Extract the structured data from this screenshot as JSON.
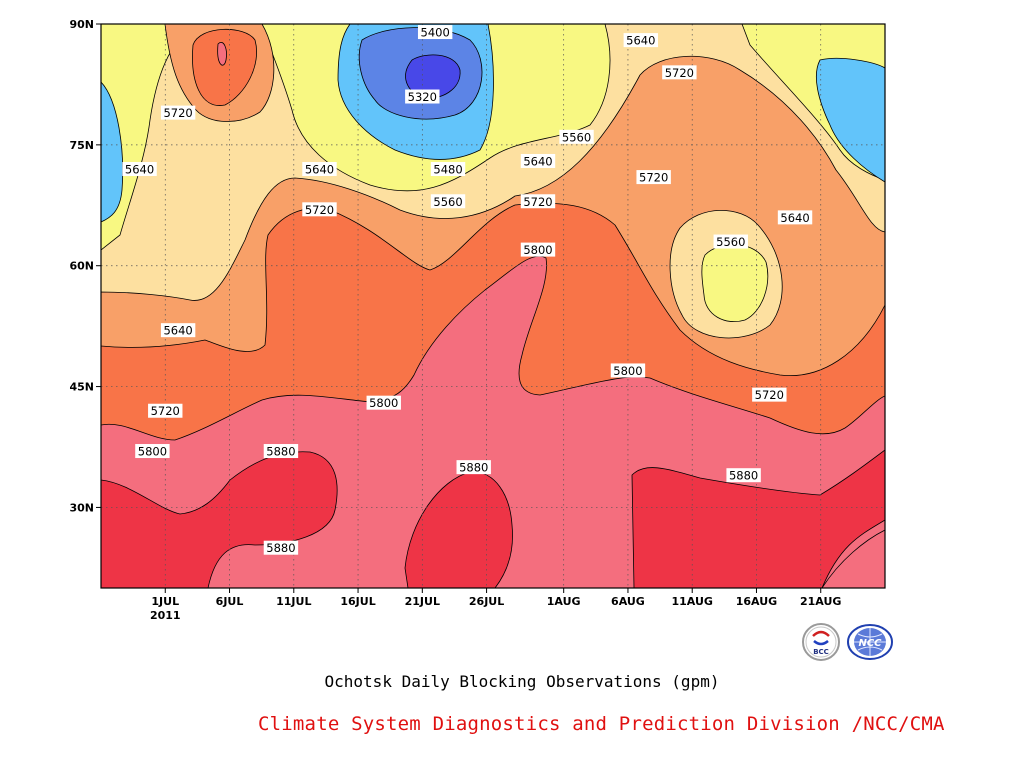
{
  "chart_data": {
    "type": "heatmap",
    "subtype": "filled-contour",
    "title": "Ochotsk Daily Blocking Observations (gpm)",
    "xlabel": "",
    "ylabel": "",
    "x_tick_labels": [
      "1JUL",
      "6JUL",
      "11JUL",
      "16JUL",
      "21JUL",
      "26JUL",
      "1AUG",
      "6AUG",
      "11AUG",
      "16AUG",
      "21AUG"
    ],
    "x_year_label": "2011",
    "y_tick_labels": [
      "30N",
      "45N",
      "60N",
      "75N",
      "90N"
    ],
    "y_ticks": [
      30,
      45,
      60,
      75,
      90
    ],
    "ylim": [
      20,
      90
    ],
    "xlim": [
      "2011-06-26",
      "2011-08-26"
    ],
    "grid": "dotted",
    "contour_levels": [
      5320,
      5400,
      5480,
      5560,
      5640,
      5720,
      5800,
      5880
    ],
    "fill_colors": {
      "lt5400": "#4848e8",
      "5400": "#5c84e6",
      "5480": "#62c4fa",
      "5560": "#f8f882",
      "5640": "#fde0a0",
      "5720": "#f8a068",
      "5800": "#f87448",
      "5880": "#f46e7e",
      "gt5880": "#ee3446"
    },
    "contour_labels": [
      {
        "text": "5400",
        "date": "2011-07-22",
        "lat": 89
      },
      {
        "text": "5320",
        "date": "2011-07-21",
        "lat": 81
      },
      {
        "text": "5480",
        "date": "2011-07-23",
        "lat": 72
      },
      {
        "text": "5560",
        "date": "2011-07-23",
        "lat": 68
      },
      {
        "text": "5640",
        "date": "2011-08-07",
        "lat": 88
      },
      {
        "text": "5720",
        "date": "2011-08-10",
        "lat": 84
      },
      {
        "text": "5560",
        "date": "2011-08-02",
        "lat": 76
      },
      {
        "text": "5640",
        "date": "2011-07-30",
        "lat": 73
      },
      {
        "text": "5720",
        "date": "2011-07-30",
        "lat": 68
      },
      {
        "text": "5720",
        "date": "2011-08-08",
        "lat": 71
      },
      {
        "text": "5560",
        "date": "2011-08-14",
        "lat": 63
      },
      {
        "text": "5640",
        "date": "2011-08-19",
        "lat": 66
      },
      {
        "text": "5720",
        "date": "2011-07-02",
        "lat": 79
      },
      {
        "text": "5640",
        "date": "2011-06-29",
        "lat": 72
      },
      {
        "text": "5640",
        "date": "2011-07-13",
        "lat": 72
      },
      {
        "text": "5720",
        "date": "2011-07-13",
        "lat": 67
      },
      {
        "text": "5800",
        "date": "2011-07-30",
        "lat": 62
      },
      {
        "text": "5640",
        "date": "2011-07-02",
        "lat": 52
      },
      {
        "text": "5720",
        "date": "2011-07-01",
        "lat": 42
      },
      {
        "text": "5800",
        "date": "2011-07-18",
        "lat": 43
      },
      {
        "text": "5800",
        "date": "2011-08-06",
        "lat": 47
      },
      {
        "text": "5720",
        "date": "2011-08-17",
        "lat": 44
      },
      {
        "text": "5800",
        "date": "2011-06-30",
        "lat": 37
      },
      {
        "text": "5880",
        "date": "2011-07-10",
        "lat": 37
      },
      {
        "text": "5880",
        "date": "2011-07-25",
        "lat": 35
      },
      {
        "text": "5880",
        "date": "2011-08-15",
        "lat": 34
      },
      {
        "text": "5880",
        "date": "2011-07-10",
        "lat": 25
      }
    ]
  },
  "footer": {
    "credit": "Climate System Diagnostics and Prediction Division /NCC/CMA",
    "logo_left_text": "BCC",
    "logo_right_text": "NCC"
  }
}
